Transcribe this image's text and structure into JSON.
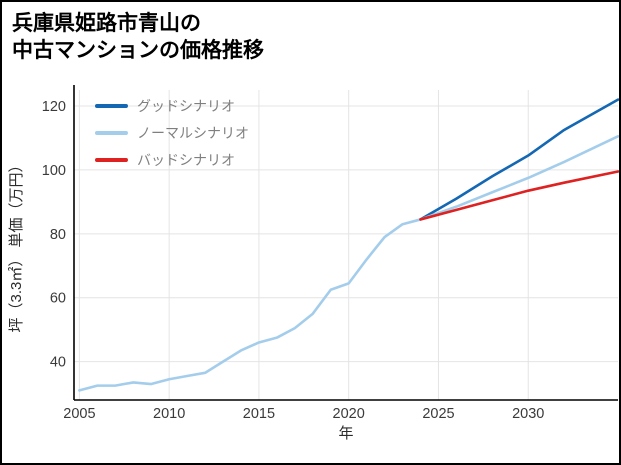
{
  "title": {
    "line1": "兵庫県姫路市青山の",
    "line2": "中古マンションの価格推移"
  },
  "chart_data": {
    "type": "line",
    "title": "兵庫県姫路市青山の中古マンションの価格推移",
    "xlabel": "年",
    "ylabel": "坪（3.3㎡） 単価（万円）",
    "xlim": [
      2004.7,
      2035
    ],
    "ylim": [
      28,
      125
    ],
    "xticks": [
      2005,
      2010,
      2015,
      2020,
      2025,
      2030
    ],
    "yticks": [
      40,
      60,
      80,
      100,
      120
    ],
    "grid": true,
    "legend_position": "top-left-inside",
    "series": [
      {
        "name": "historical",
        "show_in_legend": false,
        "color": "#a4cdec",
        "x": [
          2005,
          2006,
          2007,
          2008,
          2009,
          2010,
          2011,
          2012,
          2013,
          2014,
          2015,
          2016,
          2017,
          2018,
          2019,
          2020,
          2021,
          2022,
          2023,
          2024
        ],
        "y": [
          31,
          32.5,
          32.5,
          33.5,
          33,
          34.5,
          35.5,
          36.5,
          40,
          43.5,
          46,
          47.5,
          50.5,
          55,
          62.5,
          64.5,
          72,
          79,
          83,
          84.5
        ]
      },
      {
        "name": "グッドシナリオ",
        "show_in_legend": true,
        "color": "#1467b2",
        "x": [
          2024,
          2026,
          2028,
          2030,
          2032,
          2035
        ],
        "y": [
          84.5,
          91,
          98,
          104.5,
          112.5,
          122
        ]
      },
      {
        "name": "ノーマルシナリオ",
        "show_in_legend": true,
        "color": "#a4cdec",
        "x": [
          2024,
          2026,
          2028,
          2030,
          2032,
          2035
        ],
        "y": [
          84.5,
          88.5,
          93,
          97.5,
          102.5,
          110.5
        ]
      },
      {
        "name": "バッドシナリオ",
        "show_in_legend": true,
        "color": "#de2121",
        "x": [
          2024,
          2026,
          2028,
          2030,
          2032,
          2035
        ],
        "y": [
          84.5,
          87.5,
          90.5,
          93.5,
          96,
          99.5
        ]
      }
    ]
  }
}
